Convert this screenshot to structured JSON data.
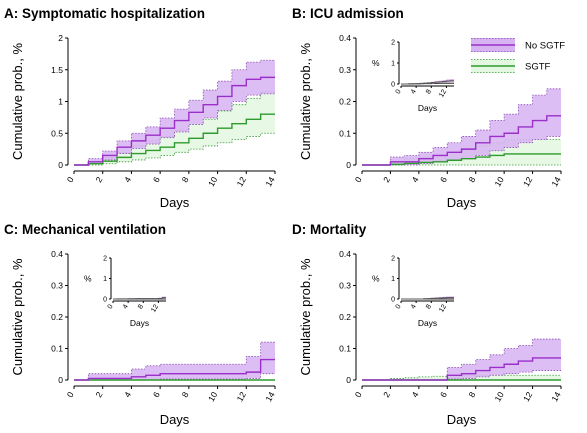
{
  "colors": {
    "no_sgtf_line": "#9a2fc9",
    "no_sgtf_band": "#d7b3f2",
    "no_sgtf_band_edge": "#8a4fb0",
    "sgtf_line": "#2f9a2f",
    "sgtf_band": "#e4f7e1",
    "sgtf_band_edge": "#3a9a3a"
  },
  "legend": {
    "items": [
      "No SGTF",
      "SGTF"
    ]
  },
  "chart_data": [
    {
      "type": "line",
      "step": true,
      "title": "A: Symptomatic hospitalization",
      "xlabel": "Days",
      "ylabel": "Cumulative prob., %",
      "xlim": [
        0,
        14
      ],
      "ylim": [
        0,
        2
      ],
      "xticks": [
        "0",
        "2",
        "4",
        "6",
        "8",
        "10",
        "12",
        "14"
      ],
      "yticks": [
        "0",
        "0.5",
        "1",
        "1.5",
        "2"
      ],
      "x": [
        0,
        1,
        2,
        3,
        4,
        5,
        6,
        7,
        8,
        9,
        10,
        11,
        12,
        13,
        14
      ],
      "series": [
        {
          "name": "No SGTF",
          "values": [
            0,
            0.05,
            0.15,
            0.28,
            0.38,
            0.47,
            0.58,
            0.7,
            0.83,
            0.95,
            1.08,
            1.25,
            1.35,
            1.38,
            1.38
          ],
          "lower": [
            0,
            0.02,
            0.08,
            0.18,
            0.26,
            0.33,
            0.43,
            0.52,
            0.64,
            0.74,
            0.86,
            1.0,
            1.1,
            1.12,
            1.12
          ],
          "upper": [
            0,
            0.1,
            0.22,
            0.38,
            0.5,
            0.6,
            0.74,
            0.88,
            1.02,
            1.18,
            1.32,
            1.5,
            1.62,
            1.65,
            1.65
          ]
        },
        {
          "name": "SGTF",
          "values": [
            0,
            0.02,
            0.06,
            0.12,
            0.18,
            0.23,
            0.28,
            0.35,
            0.42,
            0.5,
            0.58,
            0.65,
            0.72,
            0.8,
            0.8
          ],
          "lower": [
            0,
            0.0,
            0.02,
            0.05,
            0.08,
            0.11,
            0.15,
            0.2,
            0.25,
            0.3,
            0.35,
            0.4,
            0.45,
            0.5,
            0.5
          ],
          "upper": [
            0,
            0.05,
            0.12,
            0.2,
            0.3,
            0.38,
            0.45,
            0.55,
            0.64,
            0.72,
            0.85,
            0.95,
            1.05,
            1.15,
            1.15
          ]
        }
      ]
    },
    {
      "type": "line",
      "step": true,
      "title": "B: ICU admission",
      "xlabel": "Days",
      "ylabel": "Cumulative prob., %",
      "xlim": [
        0,
        14
      ],
      "ylim": [
        0,
        0.4
      ],
      "xticks": [
        "0",
        "2",
        "4",
        "6",
        "8",
        "10",
        "12",
        "14"
      ],
      "yticks": [
        "0",
        "0.1",
        "0.2",
        "0.3",
        "0.4"
      ],
      "x": [
        0,
        1,
        2,
        3,
        4,
        5,
        6,
        7,
        8,
        9,
        10,
        11,
        12,
        13,
        14
      ],
      "series": [
        {
          "name": "No SGTF",
          "values": [
            0,
            0,
            0.01,
            0.01,
            0.02,
            0.03,
            0.04,
            0.05,
            0.07,
            0.09,
            0.1,
            0.12,
            0.14,
            0.155,
            0.155
          ],
          "lower": [
            0,
            0,
            0.0,
            0.0,
            0.005,
            0.01,
            0.015,
            0.02,
            0.03,
            0.045,
            0.055,
            0.07,
            0.08,
            0.09,
            0.09
          ],
          "upper": [
            0,
            0,
            0.025,
            0.03,
            0.04,
            0.055,
            0.07,
            0.09,
            0.11,
            0.14,
            0.16,
            0.19,
            0.22,
            0.24,
            0.24
          ]
        },
        {
          "name": "SGTF",
          "values": [
            0,
            0,
            0.002,
            0.005,
            0.008,
            0.01,
            0.015,
            0.02,
            0.025,
            0.03,
            0.035,
            0.035,
            0.035,
            0.035,
            0.035
          ],
          "lower": [
            0,
            0,
            0,
            0,
            0,
            0,
            0,
            0,
            0,
            0,
            0,
            0,
            0,
            0,
            0
          ],
          "upper": [
            0,
            0,
            0.01,
            0.02,
            0.025,
            0.03,
            0.04,
            0.05,
            0.06,
            0.07,
            0.08,
            0.08,
            0.08,
            0.08,
            0.08
          ]
        }
      ],
      "inset": {
        "xlabel": "Days",
        "ylabel": "%",
        "xlim": [
          0,
          14
        ],
        "ylim": [
          0,
          2
        ],
        "xticks": [
          "0",
          "4",
          "8",
          "12"
        ],
        "yticks": [
          "0",
          "1",
          "2"
        ]
      }
    },
    {
      "type": "line",
      "step": true,
      "title": "C: Mechanical ventilation",
      "xlabel": "Days",
      "ylabel": "Cumulative prob., %",
      "xlim": [
        0,
        14
      ],
      "ylim": [
        0,
        0.4
      ],
      "xticks": [
        "0",
        "2",
        "4",
        "6",
        "8",
        "10",
        "12",
        "14"
      ],
      "yticks": [
        "0",
        "0.1",
        "0.2",
        "0.3",
        "0.4"
      ],
      "x": [
        0,
        1,
        2,
        3,
        4,
        5,
        6,
        7,
        8,
        9,
        10,
        11,
        12,
        13,
        14
      ],
      "series": [
        {
          "name": "No SGTF",
          "values": [
            0,
            0.005,
            0.005,
            0.005,
            0.01,
            0.015,
            0.02,
            0.02,
            0.02,
            0.02,
            0.02,
            0.02,
            0.025,
            0.065,
            0.065
          ],
          "lower": [
            0,
            0,
            0,
            0,
            0,
            0,
            0.003,
            0.003,
            0.003,
            0.003,
            0.003,
            0.003,
            0.005,
            0.02,
            0.02
          ],
          "upper": [
            0,
            0.02,
            0.02,
            0.02,
            0.035,
            0.045,
            0.05,
            0.05,
            0.05,
            0.05,
            0.05,
            0.05,
            0.075,
            0.12,
            0.12
          ]
        },
        {
          "name": "SGTF",
          "values": [
            0,
            0,
            0,
            0,
            0,
            0,
            0,
            0,
            0,
            0,
            0,
            0,
            0,
            0,
            0
          ],
          "lower": [
            0,
            0,
            0,
            0,
            0,
            0,
            0,
            0,
            0,
            0,
            0,
            0,
            0,
            0,
            0
          ],
          "upper": [
            0,
            0,
            0,
            0,
            0,
            0,
            0,
            0,
            0,
            0,
            0,
            0,
            0,
            0,
            0
          ]
        }
      ],
      "inset": {
        "xlabel": "Days",
        "ylabel": "%",
        "xlim": [
          0,
          14
        ],
        "ylim": [
          0,
          2
        ],
        "xticks": [
          "0",
          "4",
          "8",
          "12"
        ],
        "yticks": [
          "0",
          "1",
          "2"
        ]
      }
    },
    {
      "type": "line",
      "step": true,
      "title": "D: Mortality",
      "xlabel": "Days",
      "ylabel": "Cumulative prob., %",
      "xlim": [
        0,
        14
      ],
      "ylim": [
        0,
        0.4
      ],
      "xticks": [
        "0",
        "2",
        "4",
        "6",
        "8",
        "10",
        "12",
        "14"
      ],
      "yticks": [
        "0",
        "0.1",
        "0.2",
        "0.3",
        "0.4"
      ],
      "x": [
        0,
        1,
        2,
        3,
        4,
        5,
        6,
        7,
        8,
        9,
        10,
        11,
        12,
        13,
        14
      ],
      "series": [
        {
          "name": "No SGTF",
          "values": [
            0,
            0,
            0,
            0,
            0,
            0,
            0.015,
            0.02,
            0.03,
            0.04,
            0.05,
            0.06,
            0.07,
            0.07,
            0.07
          ],
          "lower": [
            0,
            0,
            0,
            0,
            0,
            0,
            0.003,
            0.005,
            0.01,
            0.015,
            0.02,
            0.025,
            0.03,
            0.03,
            0.03
          ],
          "upper": [
            0,
            0,
            0,
            0,
            0,
            0,
            0.04,
            0.05,
            0.065,
            0.08,
            0.1,
            0.11,
            0.13,
            0.13,
            0.13
          ]
        },
        {
          "name": "SGTF",
          "values": [
            0,
            0,
            0,
            0,
            0,
            0,
            0,
            0,
            0,
            0,
            0,
            0,
            0,
            0,
            0
          ],
          "lower": [
            0,
            0,
            0,
            0,
            0,
            0,
            0,
            0,
            0,
            0,
            0,
            0,
            0,
            0,
            0
          ],
          "upper": [
            0,
            0,
            0.005,
            0.007,
            0.01,
            0.012,
            0.015,
            0.015,
            0.015,
            0.015,
            0.015,
            0.015,
            0.015,
            0.015,
            0.015
          ]
        }
      ],
      "inset": {
        "xlabel": "Days",
        "ylabel": "%",
        "xlim": [
          0,
          14
        ],
        "ylim": [
          0,
          2
        ],
        "xticks": [
          "0",
          "4",
          "8",
          "12"
        ],
        "yticks": [
          "0",
          "1",
          "2"
        ]
      }
    }
  ]
}
